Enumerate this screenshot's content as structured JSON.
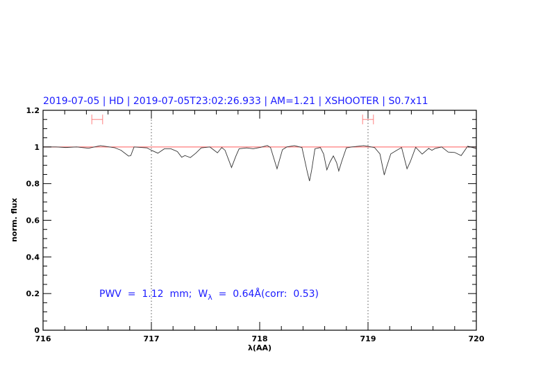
{
  "chart_data": {
    "type": "line",
    "title": "2019-07-05 | HD | 2019-07-05T23:02:26.933 | AM=1.21 | XSHOOTER | S0.7x11",
    "xlabel": "λ(AA)",
    "ylabel": "norm. flux",
    "xlim": [
      716,
      720
    ],
    "ylim": [
      0,
      1.2
    ],
    "xticks": [
      "716",
      "717",
      "718",
      "719",
      "720"
    ],
    "yticks": [
      "0",
      "0.2",
      "0.4",
      "0.6",
      "0.8",
      "1",
      "1.2"
    ],
    "reference_line": 1.0,
    "vertical_markers": [
      717,
      719
    ],
    "error_bars": [
      {
        "x": [
          716.45,
          716.55
        ],
        "y": 1.15
      },
      {
        "x": [
          718.95,
          719.05
        ],
        "y": 1.15
      }
    ],
    "annotation": {
      "pwv": "PWV  =  1.12  mm;  W",
      "sub": "λ",
      "rest": "  =  0.64Å(corr:  0.53)"
    },
    "colors": {
      "title": "#1a1aff",
      "annotation": "#1a1aff",
      "reference": "#ff5a5a",
      "error_bar": "#ff8080",
      "spectrum": "#333333"
    },
    "series": [
      {
        "x": [
          716.0,
          716.01,
          716.12,
          716.21,
          716.31,
          716.42,
          716.53,
          716.66,
          716.72,
          716.79,
          716.81,
          716.84,
          716.96,
          717.0,
          717.06,
          717.12,
          717.18,
          717.24,
          717.28,
          717.31,
          717.36,
          717.41,
          717.46,
          717.54,
          717.61,
          717.65,
          717.68,
          717.74,
          717.78,
          717.81,
          717.88,
          717.94,
          718.01,
          718.07,
          718.1,
          718.16,
          718.21,
          718.25,
          718.32,
          718.39,
          718.44,
          718.46,
          718.48,
          718.51,
          718.56,
          718.59,
          718.62,
          718.65,
          718.68,
          718.71,
          718.73,
          718.76,
          718.8,
          718.85,
          718.96,
          719.06,
          719.11,
          719.15,
          719.17,
          719.21,
          719.26,
          719.31,
          719.36,
          719.39,
          719.44,
          719.5,
          719.56,
          719.59,
          719.62,
          719.68,
          719.74,
          719.8,
          719.86,
          719.92,
          719.99,
          720.0
        ],
        "y": [
          1.0,
          1.0,
          1.0,
          0.997,
          1.0,
          0.993,
          1.007,
          0.996,
          0.982,
          0.95,
          0.953,
          1.0,
          0.995,
          0.982,
          0.966,
          0.99,
          0.99,
          0.975,
          0.944,
          0.953,
          0.942,
          0.966,
          0.995,
          1.0,
          0.968,
          0.997,
          0.982,
          0.888,
          0.95,
          0.99,
          0.995,
          0.99,
          0.998,
          1.008,
          0.997,
          0.881,
          0.985,
          1.0,
          1.007,
          0.997,
          0.862,
          0.814,
          0.875,
          0.99,
          0.997,
          0.962,
          0.875,
          0.919,
          0.951,
          0.914,
          0.869,
          0.926,
          0.995,
          1.0,
          1.007,
          0.997,
          0.962,
          0.847,
          0.888,
          0.962,
          0.98,
          0.997,
          0.881,
          0.919,
          0.998,
          0.961,
          0.992,
          0.982,
          0.992,
          1.0,
          0.972,
          0.97,
          0.953,
          1.004,
          0.993,
          0.99
        ]
      }
    ]
  }
}
